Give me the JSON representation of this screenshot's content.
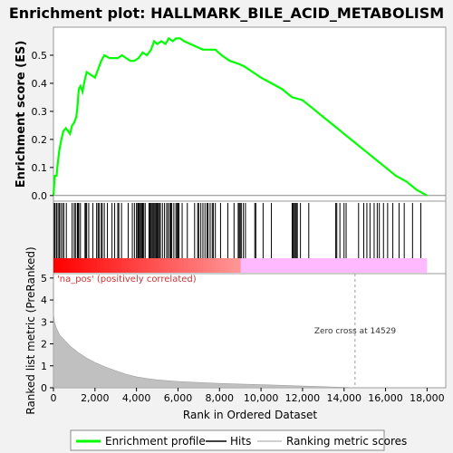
{
  "chart_data": {
    "type": "line",
    "title": "Enrichment plot: HALLMARK_BILE_ACID_METABOLISM",
    "es_panel": {
      "ylabel": "Enrichment score (ES)",
      "ylim": [
        -0.02,
        0.6
      ],
      "yticks": [
        "0.0",
        "0.1",
        "0.2",
        "0.3",
        "0.4",
        "0.5"
      ],
      "ytick_values": [
        0.0,
        0.1,
        0.2,
        0.3,
        0.4,
        0.5
      ],
      "line_color": "#00ff00",
      "points": [
        [
          0,
          0.0
        ],
        [
          60,
          0.07
        ],
        [
          150,
          0.07
        ],
        [
          200,
          0.11
        ],
        [
          280,
          0.16
        ],
        [
          380,
          0.2
        ],
        [
          480,
          0.23
        ],
        [
          600,
          0.24
        ],
        [
          800,
          0.22
        ],
        [
          900,
          0.25
        ],
        [
          1000,
          0.26
        ],
        [
          1100,
          0.28
        ],
        [
          1150,
          0.31
        ],
        [
          1220,
          0.38
        ],
        [
          1300,
          0.39
        ],
        [
          1400,
          0.37
        ],
        [
          1500,
          0.41
        ],
        [
          1600,
          0.44
        ],
        [
          1800,
          0.43
        ],
        [
          2000,
          0.42
        ],
        [
          2150,
          0.45
        ],
        [
          2300,
          0.48
        ],
        [
          2450,
          0.5
        ],
        [
          2700,
          0.49
        ],
        [
          2900,
          0.49
        ],
        [
          3100,
          0.49
        ],
        [
          3300,
          0.5
        ],
        [
          3500,
          0.49
        ],
        [
          3700,
          0.48
        ],
        [
          3900,
          0.48
        ],
        [
          4100,
          0.49
        ],
        [
          4300,
          0.51
        ],
        [
          4500,
          0.5
        ],
        [
          4700,
          0.52
        ],
        [
          4850,
          0.55
        ],
        [
          5000,
          0.54
        ],
        [
          5200,
          0.55
        ],
        [
          5400,
          0.54
        ],
        [
          5550,
          0.56
        ],
        [
          5750,
          0.55
        ],
        [
          5900,
          0.56
        ],
        [
          6100,
          0.56
        ],
        [
          6300,
          0.55
        ],
        [
          6600,
          0.54
        ],
        [
          6900,
          0.53
        ],
        [
          7200,
          0.52
        ],
        [
          7500,
          0.52
        ],
        [
          7800,
          0.52
        ],
        [
          8100,
          0.5
        ],
        [
          8500,
          0.48
        ],
        [
          8900,
          0.47
        ],
        [
          9200,
          0.46
        ],
        [
          9600,
          0.44
        ],
        [
          10000,
          0.42
        ],
        [
          10500,
          0.4
        ],
        [
          11000,
          0.38
        ],
        [
          11500,
          0.35
        ],
        [
          12000,
          0.34
        ],
        [
          12500,
          0.31
        ],
        [
          13000,
          0.28
        ],
        [
          13500,
          0.25
        ],
        [
          14000,
          0.22
        ],
        [
          14500,
          0.19
        ],
        [
          15000,
          0.16
        ],
        [
          15500,
          0.13
        ],
        [
          16000,
          0.1
        ],
        [
          16500,
          0.07
        ],
        [
          17000,
          0.05
        ],
        [
          17500,
          0.02
        ],
        [
          18000,
          0.0
        ]
      ]
    },
    "hits_panel": {
      "hits": [
        40,
        80,
        150,
        220,
        280,
        350,
        430,
        500,
        620,
        900,
        1000,
        1060,
        1150,
        1180,
        1220,
        1300,
        1520,
        1560,
        1600,
        1700,
        1900,
        2080,
        2150,
        2200,
        2300,
        2350,
        2450,
        2600,
        2820,
        2950,
        3100,
        3150,
        3280,
        3600,
        3800,
        3900,
        4000,
        4060,
        4100,
        4150,
        4200,
        4250,
        4300,
        4350,
        4420,
        4600,
        4650,
        4700,
        4750,
        4800,
        4850,
        4900,
        4950,
        5000,
        5050,
        5100,
        5150,
        5250,
        5350,
        5450,
        5520,
        5600,
        5650,
        5700,
        5800,
        5900,
        5950,
        6000,
        6050,
        6200,
        6450,
        6800,
        6950,
        7000,
        7100,
        7200,
        7300,
        7400,
        7450,
        7550,
        7650,
        7700,
        7800,
        8050,
        8400,
        8700,
        8900,
        8950,
        9000,
        9050,
        9150,
        9250,
        9700,
        9750,
        10100,
        10500,
        11500,
        11550,
        11600,
        11650,
        11700,
        11750,
        11900,
        12300,
        13600,
        13650,
        13800,
        14000,
        14100,
        14700,
        14950,
        15100,
        15250,
        15450,
        15600,
        15700,
        15900,
        16100,
        16350,
        16650,
        16900,
        17300,
        17700
      ],
      "gradient_positive_color": "#ff0000",
      "gradient_negative_color": "#ff80ff"
    },
    "metric_panel": {
      "ylabel": "Ranked list metric (PreRanked)",
      "ylim": [
        0,
        5.2
      ],
      "yticks": [
        "0",
        "1",
        "2",
        "3",
        "4",
        "5"
      ],
      "ytick_values": [
        0,
        1,
        2,
        3,
        4,
        5
      ],
      "positive_label": "'na_pos' (positively correlated)",
      "zero_cross_label": "Zero cross at 14529",
      "zero_cross": 14529,
      "fill_color": "#c0c0c0",
      "points": [
        [
          0,
          3.4
        ],
        [
          50,
          3.0
        ],
        [
          150,
          2.7
        ],
        [
          300,
          2.4
        ],
        [
          500,
          2.2
        ],
        [
          800,
          1.9
        ],
        [
          1200,
          1.6
        ],
        [
          1600,
          1.35
        ],
        [
          2000,
          1.15
        ],
        [
          2500,
          0.95
        ],
        [
          3000,
          0.78
        ],
        [
          3500,
          0.62
        ],
        [
          4000,
          0.5
        ],
        [
          4500,
          0.42
        ],
        [
          5000,
          0.36
        ],
        [
          5500,
          0.32
        ],
        [
          6000,
          0.29
        ],
        [
          7000,
          0.24
        ],
        [
          8000,
          0.2
        ],
        [
          9000,
          0.17
        ],
        [
          10000,
          0.14
        ],
        [
          11000,
          0.11
        ],
        [
          12000,
          0.08
        ],
        [
          13000,
          0.05
        ],
        [
          14000,
          0.02
        ],
        [
          14529,
          0.0
        ],
        [
          18000,
          0.0
        ]
      ]
    },
    "xlabel": "Rank in Ordered Dataset",
    "xlim": [
      0,
      18900
    ],
    "xticks": [
      "0",
      "2,000",
      "4,000",
      "6,000",
      "8,000",
      "10,000",
      "12,000",
      "14,000",
      "16,000",
      "18,000"
    ],
    "xtick_values": [
      0,
      2000,
      4000,
      6000,
      8000,
      10000,
      12000,
      14000,
      16000,
      18000
    ],
    "legend": {
      "placement": "bottom",
      "items": [
        {
          "label": "Enrichment profile",
          "color": "#00ff00"
        },
        {
          "label": "Hits",
          "color": "#000000"
        },
        {
          "label": "Ranking metric scores",
          "color": "#c0c0c0"
        }
      ]
    }
  }
}
